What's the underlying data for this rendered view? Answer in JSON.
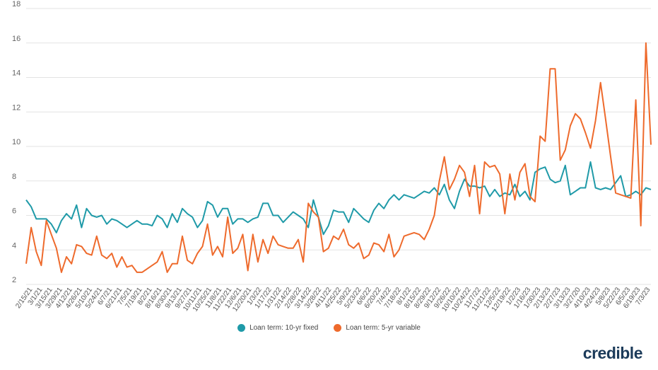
{
  "chart_data": {
    "type": "line",
    "title": "",
    "xlabel": "",
    "ylabel": "",
    "ylim": [
      2,
      18
    ],
    "yticks": [
      2,
      4,
      6,
      8,
      10,
      12,
      14,
      16,
      18
    ],
    "x_tick_labels": [
      "2/15/21",
      "3/1/21",
      "3/15/21",
      "3/29/21",
      "4/12/21",
      "4/26/21",
      "5/10/21",
      "5/24/21",
      "6/7/21",
      "6/21/21",
      "7/5/21",
      "7/19/21",
      "8/2/21",
      "8/16/21",
      "8/30/21",
      "9/13/21",
      "9/27/21",
      "10/11/21",
      "10/25/21",
      "11/8/21",
      "11/22/21",
      "12/6/21",
      "12/20/21",
      "1/3/22",
      "1/17/22",
      "1/31/22",
      "2/14/22",
      "2/28/22",
      "3/14/22",
      "3/28/22",
      "4/11/22",
      "4/25/22",
      "5/9/22",
      "5/23/22",
      "6/6/22",
      "6/20/22",
      "7/4/22",
      "7/18/22",
      "8/1/22",
      "8/15/22",
      "8/29/22",
      "9/12/22",
      "9/26/22",
      "10/10/22",
      "10/24/22",
      "11/7/22",
      "11/21/22",
      "12/5/22",
      "12/19/22",
      "1/2/23",
      "1/16/23",
      "1/30/23",
      "2/13/23",
      "2/27/23",
      "3/13/23",
      "3/27/20",
      "4/10/23",
      "4/24/23",
      "5/8/23",
      "5/22/23",
      "6/5/23",
      "6/19/23",
      "7/3/23"
    ],
    "series": [
      {
        "name": "Loan term: 10-yr fixed",
        "color": "#1f9aa8",
        "values": [
          6.9,
          6.5,
          5.8,
          5.8,
          5.8,
          5.5,
          5.0,
          5.7,
          6.1,
          5.8,
          6.6,
          5.3,
          6.4,
          6.0,
          5.9,
          6.0,
          5.5,
          5.8,
          5.7,
          5.5,
          5.3,
          5.5,
          5.7,
          5.5,
          5.5,
          5.4,
          6.0,
          5.8,
          5.3,
          6.1,
          5.6,
          6.4,
          6.1,
          5.9,
          5.3,
          5.7,
          6.8,
          6.6,
          5.9,
          6.4,
          6.4,
          5.5,
          5.8,
          5.8,
          5.6,
          5.8,
          5.9,
          6.7,
          6.7,
          6.0,
          6.0,
          5.6,
          5.9,
          6.2,
          6.0,
          5.8,
          5.3,
          6.9,
          5.9,
          4.9,
          5.4,
          6.3,
          6.2,
          6.2,
          5.6,
          6.4,
          6.1,
          5.8,
          5.6,
          6.3,
          6.7,
          6.4,
          6.9,
          7.2,
          6.9,
          7.2,
          7.1,
          7.0,
          7.2,
          7.4,
          7.3,
          7.6,
          7.2,
          7.8,
          6.9,
          6.4,
          7.4,
          8.1,
          7.7,
          7.7,
          7.6,
          7.7,
          7.1,
          7.5,
          7.1,
          7.3,
          7.2,
          7.8,
          7.1,
          7.4,
          6.9,
          8.5,
          8.7,
          8.8,
          8.1,
          7.9,
          8.0,
          8.9,
          7.2,
          7.4,
          7.6,
          7.6,
          9.1,
          7.6,
          7.5,
          7.6,
          7.5,
          7.9,
          8.3,
          7.1,
          7.2,
          7.4,
          7.2,
          7.6,
          7.5
        ]
      },
      {
        "name": "Loan term: 5-yr variable",
        "color": "#ee6a2c",
        "values": [
          3.2,
          5.3,
          3.9,
          3.1,
          5.7,
          4.9,
          4.1,
          2.7,
          3.6,
          3.2,
          4.3,
          4.2,
          3.8,
          3.7,
          4.8,
          3.7,
          3.5,
          3.8,
          3.0,
          3.6,
          3.0,
          3.1,
          2.7,
          2.7,
          2.9,
          3.1,
          3.3,
          3.9,
          2.7,
          3.2,
          3.2,
          4.8,
          3.4,
          3.2,
          3.8,
          4.2,
          5.5,
          3.7,
          4.2,
          3.6,
          5.9,
          3.8,
          4.1,
          4.9,
          2.8,
          4.9,
          3.3,
          4.6,
          3.8,
          4.8,
          4.3,
          4.2,
          4.1,
          4.1,
          4.6,
          3.3,
          6.7,
          6.2,
          5.9,
          3.9,
          4.1,
          4.8,
          4.6,
          5.2,
          4.3,
          4.1,
          4.4,
          3.5,
          3.7,
          4.4,
          4.3,
          3.9,
          4.9,
          3.6,
          4.0,
          4.8,
          4.9,
          5.0,
          4.9,
          4.6,
          5.2,
          6.0,
          8.0,
          9.4,
          7.5,
          8.1,
          8.9,
          8.5,
          7.1,
          8.9,
          6.1,
          9.1,
          8.8,
          8.9,
          8.4,
          6.1,
          8.4,
          6.9,
          8.5,
          9.0,
          7.1,
          6.8,
          10.6,
          10.3,
          14.5,
          14.5,
          9.2,
          9.8,
          11.2,
          11.9,
          11.6,
          10.8,
          9.9,
          11.5,
          13.7,
          11.6,
          9.4,
          7.3,
          7.2,
          7.1,
          7.0,
          12.7,
          5.4,
          16.0,
          10.1
        ]
      }
    ],
    "legend": {
      "position": "bottom-center",
      "items": [
        {
          "label": "Loan term: 10-yr fixed",
          "color": "#1f9aa8"
        },
        {
          "label": "Loan term: 5-yr variable",
          "color": "#ee6a2c"
        }
      ]
    }
  },
  "brand": {
    "logo_text": "credible"
  }
}
